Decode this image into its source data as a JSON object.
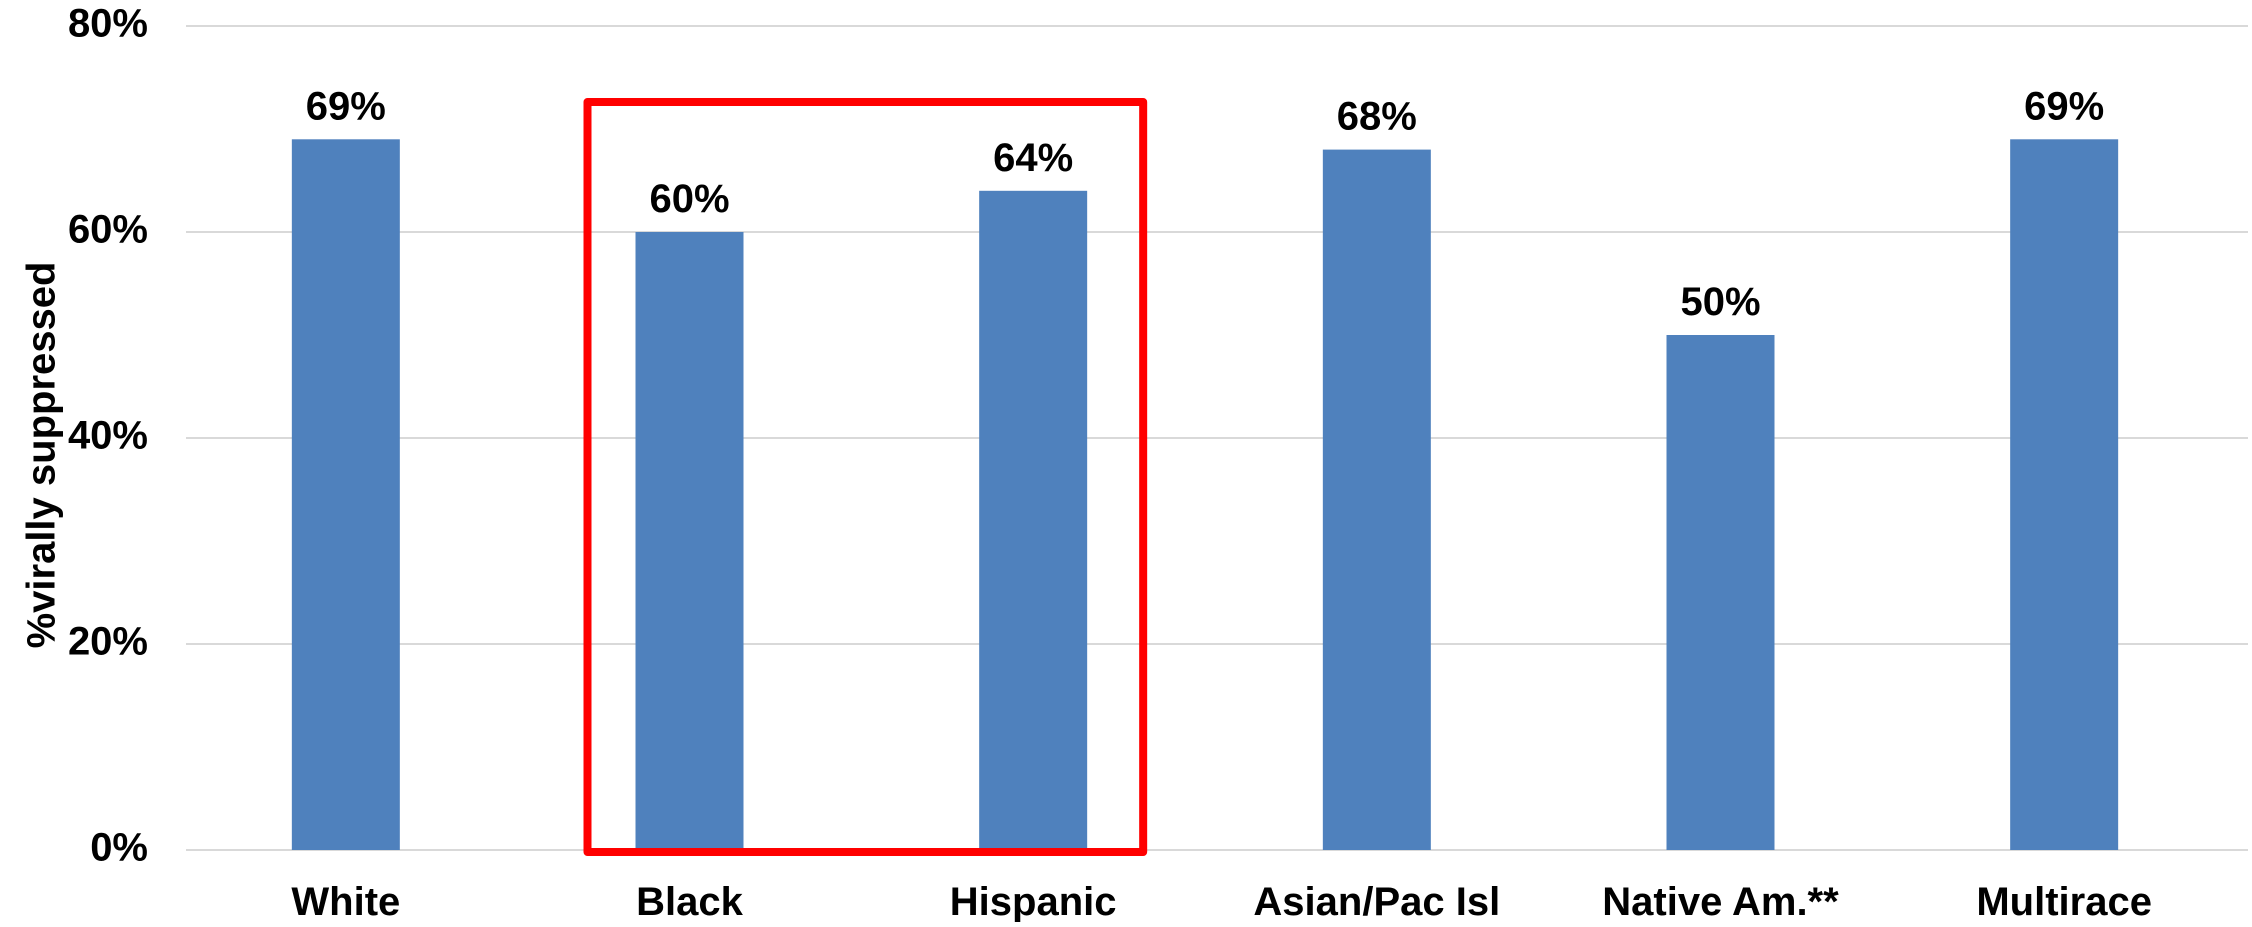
{
  "chart_data": {
    "type": "bar",
    "title": "",
    "xlabel": "",
    "ylabel": "%virally suppressed",
    "categories": [
      "White",
      "Black",
      "Hispanic",
      "Asian/Pac Isl",
      "Native Am.**",
      "Multirace"
    ],
    "values": [
      69,
      60,
      64,
      68,
      50,
      69
    ],
    "data_labels": [
      "69%",
      "60%",
      "64%",
      "68%",
      "50%",
      "69%"
    ],
    "ylim": [
      0,
      80
    ],
    "y_ticks": [
      0,
      20,
      40,
      60,
      80
    ],
    "y_tick_labels": [
      "0%",
      "20%",
      "40%",
      "60%",
      "80%"
    ],
    "grid": true,
    "legend": "none",
    "highlight": {
      "categories": [
        "Black",
        "Hispanic"
      ]
    }
  },
  "colors": {
    "bar": "#4F81BD",
    "gridline": "#D9D9D9",
    "highlight_box": "#FF0000",
    "text": "#000000"
  }
}
